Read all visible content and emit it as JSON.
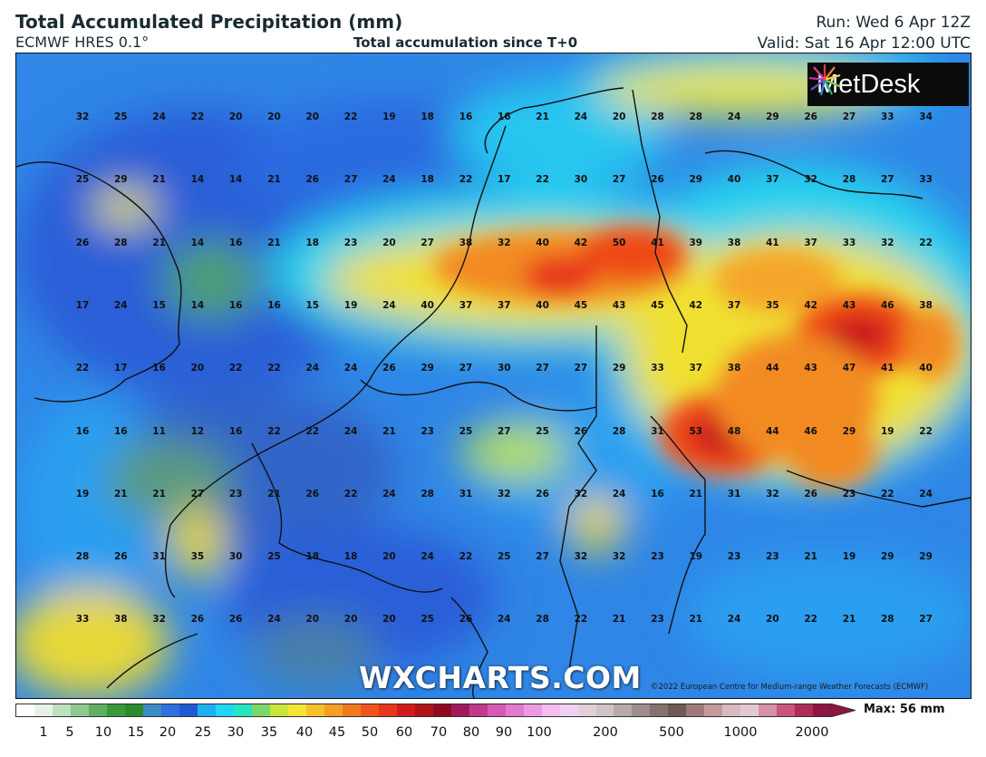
{
  "header": {
    "title": "Total Accumulated Precipitation (mm)",
    "model": "ECMWF HRES 0.1°",
    "subtitle": "Total accumulation since T+0",
    "run": "Run: Wed 6 Apr 12Z",
    "valid": "Valid: Sat 16 Apr 12:00 UTC"
  },
  "logo": {
    "name": "MetDesk"
  },
  "watermark": "WXCHARTS.COM",
  "copyright": "©2022 European Centre for Medium-range Weather Forecasts (ECMWF)",
  "grid_values": [
    [
      32,
      25,
      24,
      22,
      20,
      20,
      20,
      22,
      19,
      18,
      16,
      16,
      21,
      24,
      20,
      28,
      28,
      24,
      29,
      26,
      27,
      33,
      34
    ],
    [
      25,
      29,
      21,
      14,
      14,
      21,
      26,
      27,
      24,
      18,
      22,
      17,
      22,
      30,
      27,
      26,
      29,
      40,
      37,
      32,
      28,
      27,
      33
    ],
    [
      26,
      28,
      21,
      14,
      16,
      21,
      18,
      23,
      20,
      27,
      38,
      32,
      40,
      42,
      50,
      41,
      39,
      38,
      41,
      37,
      33,
      32,
      22
    ],
    [
      17,
      24,
      15,
      14,
      16,
      16,
      15,
      19,
      24,
      40,
      37,
      37,
      40,
      45,
      43,
      45,
      42,
      37,
      35,
      42,
      43,
      46,
      38
    ],
    [
      22,
      17,
      16,
      20,
      22,
      22,
      24,
      24,
      26,
      29,
      27,
      30,
      27,
      27,
      29,
      33,
      37,
      38,
      44,
      43,
      47,
      41,
      40
    ],
    [
      16,
      16,
      11,
      12,
      16,
      22,
      22,
      24,
      21,
      23,
      25,
      27,
      25,
      26,
      28,
      31,
      53,
      48,
      44,
      46,
      29,
      19,
      22
    ],
    [
      19,
      21,
      21,
      27,
      23,
      21,
      26,
      22,
      24,
      28,
      31,
      32,
      26,
      32,
      24,
      16,
      21,
      31,
      32,
      26,
      23,
      22,
      24
    ],
    [
      28,
      26,
      31,
      35,
      30,
      25,
      18,
      18,
      20,
      24,
      22,
      25,
      27,
      32,
      32,
      23,
      19,
      23,
      23,
      21,
      19,
      29,
      29
    ],
    [
      33,
      38,
      32,
      26,
      26,
      24,
      20,
      20,
      20,
      25,
      26,
      24,
      28,
      22,
      21,
      23,
      21,
      24,
      20,
      22,
      21,
      28,
      27
    ]
  ],
  "colorbar": {
    "ticks": [
      "1",
      "5",
      "10",
      "15",
      "20",
      "25",
      "30",
      "35",
      "40",
      "45",
      "50",
      "60",
      "70",
      "80",
      "90",
      "100",
      "200",
      "500",
      "1000",
      "2000"
    ],
    "colors": [
      "#ffffff",
      "#e6f2e6",
      "#bfe0bf",
      "#8fc98f",
      "#5fb05f",
      "#3a9a3a",
      "#2b8a2b",
      "#3c8cc8",
      "#2f6fe0",
      "#1f5ad6",
      "#1fb0f0",
      "#22d6f2",
      "#22e6c0",
      "#7ad86a",
      "#c8e63a",
      "#f2e632",
      "#f5c22a",
      "#f59f22",
      "#f27a1c",
      "#ee561c",
      "#e8361c",
      "#d21a1a",
      "#b2121a",
      "#8e0a22",
      "#a01a5a",
      "#c23a8a",
      "#d65ab2",
      "#e27ace",
      "#ee9ae2",
      "#f4bcec",
      "#f0d0f0",
      "#e0d0d8",
      "#cfc4c4",
      "#b8aaaa",
      "#9c8e8e",
      "#84726f",
      "#6e5a56",
      "#a07a7a",
      "#c39a9a",
      "#d9b8c0",
      "#e4c8d0",
      "#d890a8",
      "#c8567e",
      "#b02a5a",
      "#8e1442"
    ],
    "max_label": "Max: 56 mm"
  }
}
